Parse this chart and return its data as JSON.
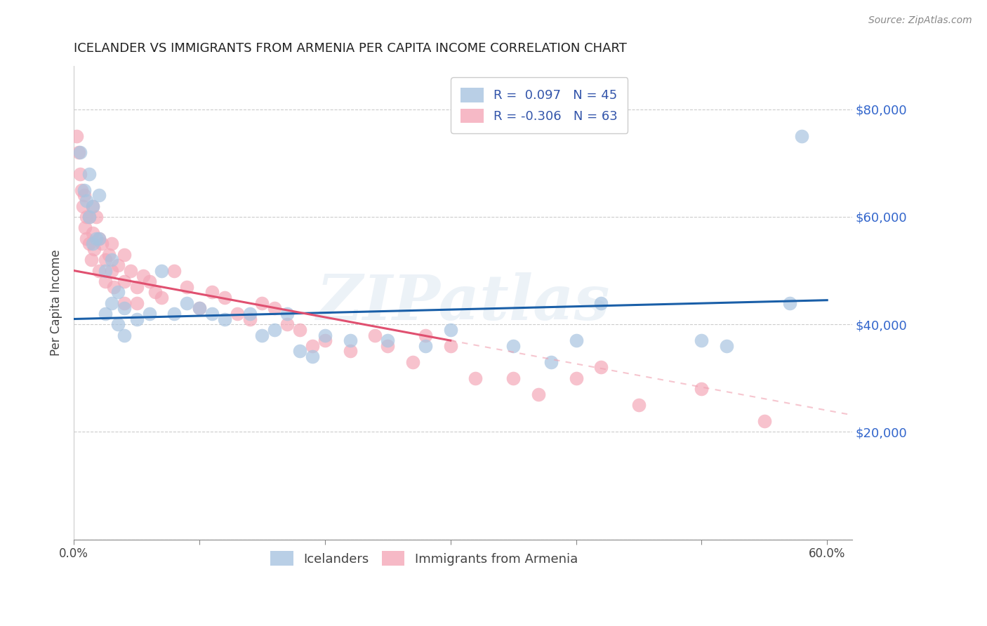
{
  "title": "ICELANDER VS IMMIGRANTS FROM ARMENIA PER CAPITA INCOME CORRELATION CHART",
  "source": "Source: ZipAtlas.com",
  "ylabel_label": "Per Capita Income",
  "xlim": [
    0.0,
    0.62
  ],
  "ylim": [
    0,
    88000
  ],
  "legend_r1_label": "R = ",
  "legend_r1_val": "0.097",
  "legend_r1_n": "N = 45",
  "legend_r2_label": "R = ",
  "legend_r2_val": "-0.306",
  "legend_r2_n": "N = 63",
  "legend_label1": "Icelanders",
  "legend_label2": "Immigrants from Armenia",
  "blue_color": "#a8c4e0",
  "pink_color": "#f4a8b8",
  "blue_line_color": "#1a5fa8",
  "pink_line_color": "#e05070",
  "pink_dash_color": "#f0a0b0",
  "watermark": "ZIPatlas",
  "blue_scatter_x": [
    0.005,
    0.008,
    0.01,
    0.012,
    0.012,
    0.015,
    0.015,
    0.018,
    0.02,
    0.02,
    0.025,
    0.025,
    0.03,
    0.03,
    0.035,
    0.035,
    0.04,
    0.04,
    0.05,
    0.06,
    0.07,
    0.08,
    0.09,
    0.1,
    0.11,
    0.12,
    0.14,
    0.15,
    0.16,
    0.17,
    0.18,
    0.19,
    0.2,
    0.22,
    0.25,
    0.28,
    0.3,
    0.35,
    0.38,
    0.4,
    0.42,
    0.5,
    0.52,
    0.57,
    0.58
  ],
  "blue_scatter_y": [
    72000,
    65000,
    63000,
    68000,
    60000,
    62000,
    55000,
    56000,
    64000,
    56000,
    50000,
    42000,
    52000,
    44000,
    46000,
    40000,
    43000,
    38000,
    41000,
    42000,
    50000,
    42000,
    44000,
    43000,
    42000,
    41000,
    42000,
    38000,
    39000,
    42000,
    35000,
    34000,
    38000,
    37000,
    37000,
    36000,
    39000,
    36000,
    33000,
    37000,
    44000,
    37000,
    36000,
    44000,
    75000
  ],
  "pink_scatter_x": [
    0.002,
    0.004,
    0.005,
    0.006,
    0.007,
    0.008,
    0.009,
    0.01,
    0.01,
    0.012,
    0.012,
    0.014,
    0.015,
    0.015,
    0.016,
    0.018,
    0.02,
    0.02,
    0.022,
    0.025,
    0.025,
    0.028,
    0.03,
    0.03,
    0.032,
    0.035,
    0.04,
    0.04,
    0.04,
    0.045,
    0.05,
    0.05,
    0.055,
    0.06,
    0.065,
    0.07,
    0.08,
    0.09,
    0.1,
    0.11,
    0.12,
    0.13,
    0.14,
    0.15,
    0.16,
    0.17,
    0.18,
    0.19,
    0.2,
    0.22,
    0.24,
    0.25,
    0.27,
    0.28,
    0.3,
    0.32,
    0.35,
    0.37,
    0.4,
    0.42,
    0.45,
    0.5,
    0.55
  ],
  "pink_scatter_y": [
    75000,
    72000,
    68000,
    65000,
    62000,
    64000,
    58000,
    60000,
    56000,
    55000,
    60000,
    52000,
    57000,
    62000,
    54000,
    60000,
    56000,
    50000,
    55000,
    52000,
    48000,
    53000,
    50000,
    55000,
    47000,
    51000,
    48000,
    53000,
    44000,
    50000,
    47000,
    44000,
    49000,
    48000,
    46000,
    45000,
    50000,
    47000,
    43000,
    46000,
    45000,
    42000,
    41000,
    44000,
    43000,
    40000,
    39000,
    36000,
    37000,
    35000,
    38000,
    36000,
    33000,
    38000,
    36000,
    30000,
    30000,
    27000,
    30000,
    32000,
    25000,
    28000,
    22000
  ],
  "ytick_vals": [
    0,
    20000,
    40000,
    60000,
    80000
  ],
  "ytick_labels": [
    "",
    "$20,000",
    "$40,000",
    "$60,000",
    "$80,000"
  ],
  "xtick_vals": [
    0.0,
    0.1,
    0.2,
    0.3,
    0.4,
    0.5,
    0.6
  ],
  "xtick_end_labels": [
    "0.0%",
    "60.0%"
  ]
}
